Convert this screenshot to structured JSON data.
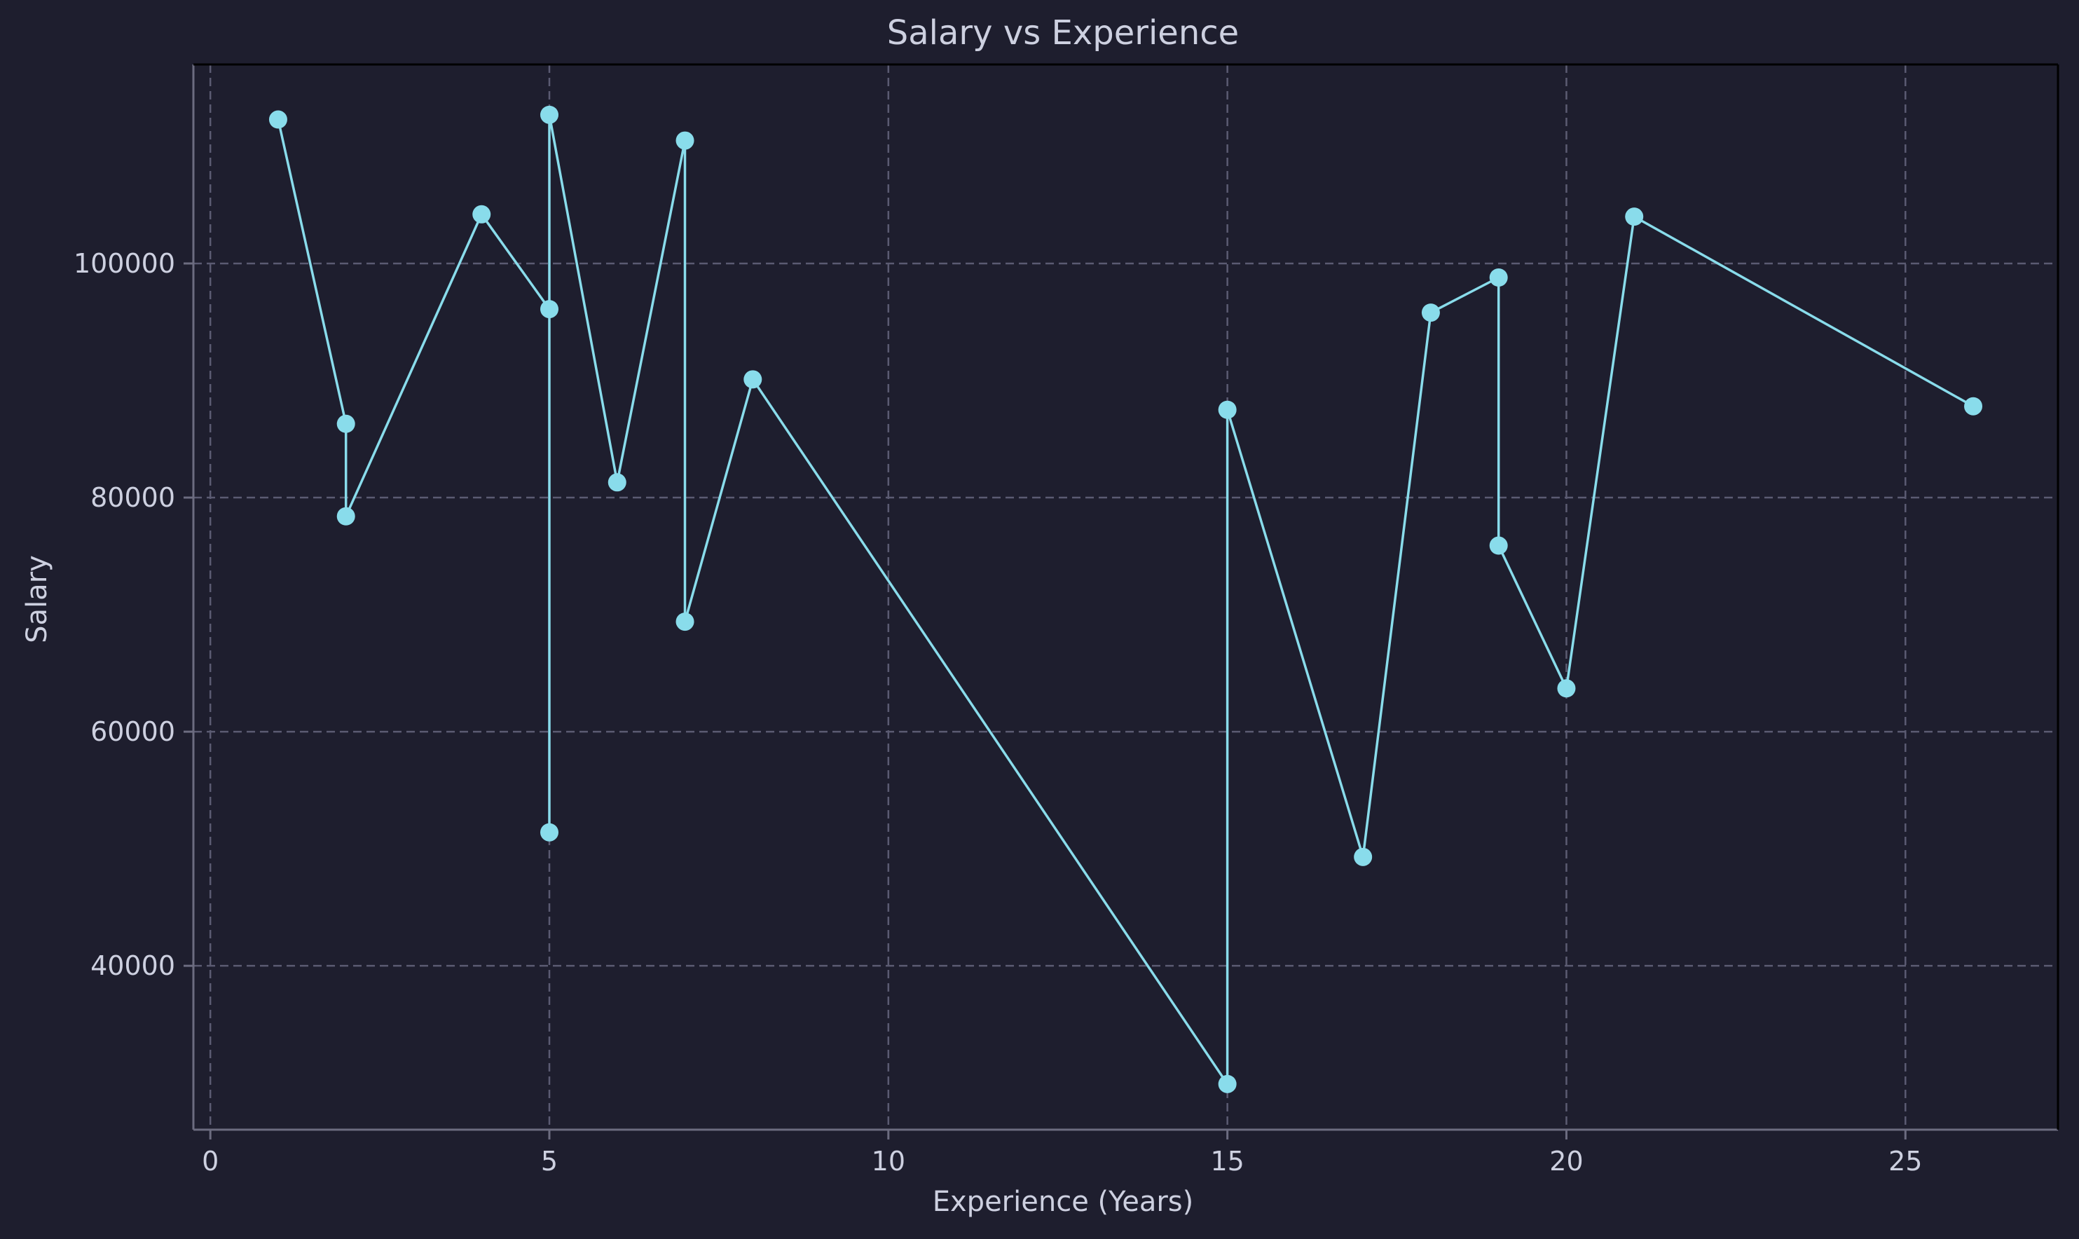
{
  "chart_data": {
    "type": "line",
    "title": "Salary vs Experience",
    "xlabel": "Experience (Years)",
    "ylabel": "Salary",
    "xlim": [
      -0.25,
      27.25
    ],
    "ylim": [
      26000,
      117000
    ],
    "xticks": [
      0,
      5,
      10,
      15,
      20,
      25
    ],
    "yticks": [
      40000,
      60000,
      80000,
      100000
    ],
    "grid": true,
    "grid_style": "dashed",
    "marker": "circle",
    "colors": {
      "background": "#1e1e2e",
      "line": "#89dceb",
      "marker": "#89dceb",
      "grid": "#5b5b72",
      "axis": "#6c6c80",
      "text": "#cdd0e0"
    },
    "series": [
      {
        "x": [
          1,
          2,
          2,
          4,
          5,
          5,
          5,
          6,
          7,
          7,
          8,
          15,
          15,
          17,
          18,
          19,
          19,
          20,
          21,
          26
        ],
        "y": [
          112300,
          86300,
          78400,
          104200,
          96100,
          51400,
          112700,
          81300,
          110500,
          69400,
          90100,
          29900,
          87500,
          49300,
          95800,
          98800,
          75900,
          63700,
          104000,
          87800
        ]
      }
    ]
  }
}
